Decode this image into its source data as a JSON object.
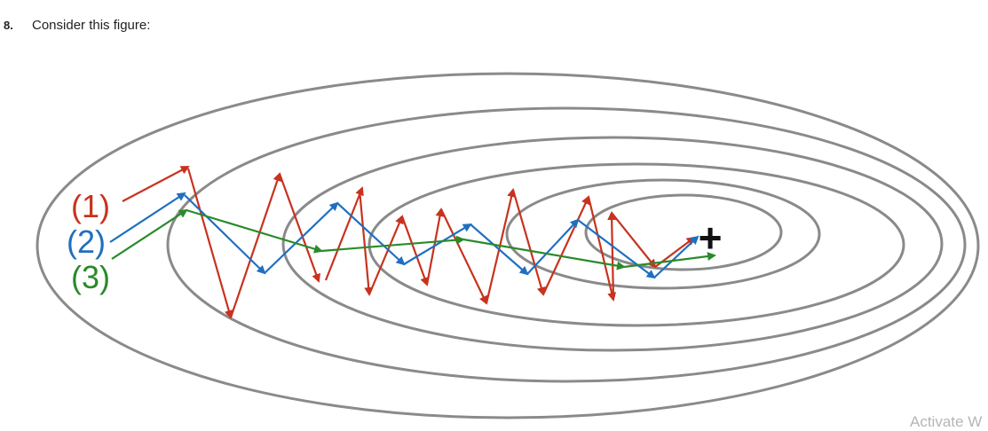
{
  "question": {
    "number": "8.",
    "prompt": "Consider this figure:"
  },
  "figure": {
    "legend": [
      {
        "label": "(1)",
        "color": "#c8321e"
      },
      {
        "label": "(2)",
        "color": "#1f6fc1"
      },
      {
        "label": "(3)",
        "color": "#2a8a2a"
      }
    ],
    "minimum_marker": "+",
    "contour_color": "#8a8a8a"
  },
  "watermark": "Activate W"
}
